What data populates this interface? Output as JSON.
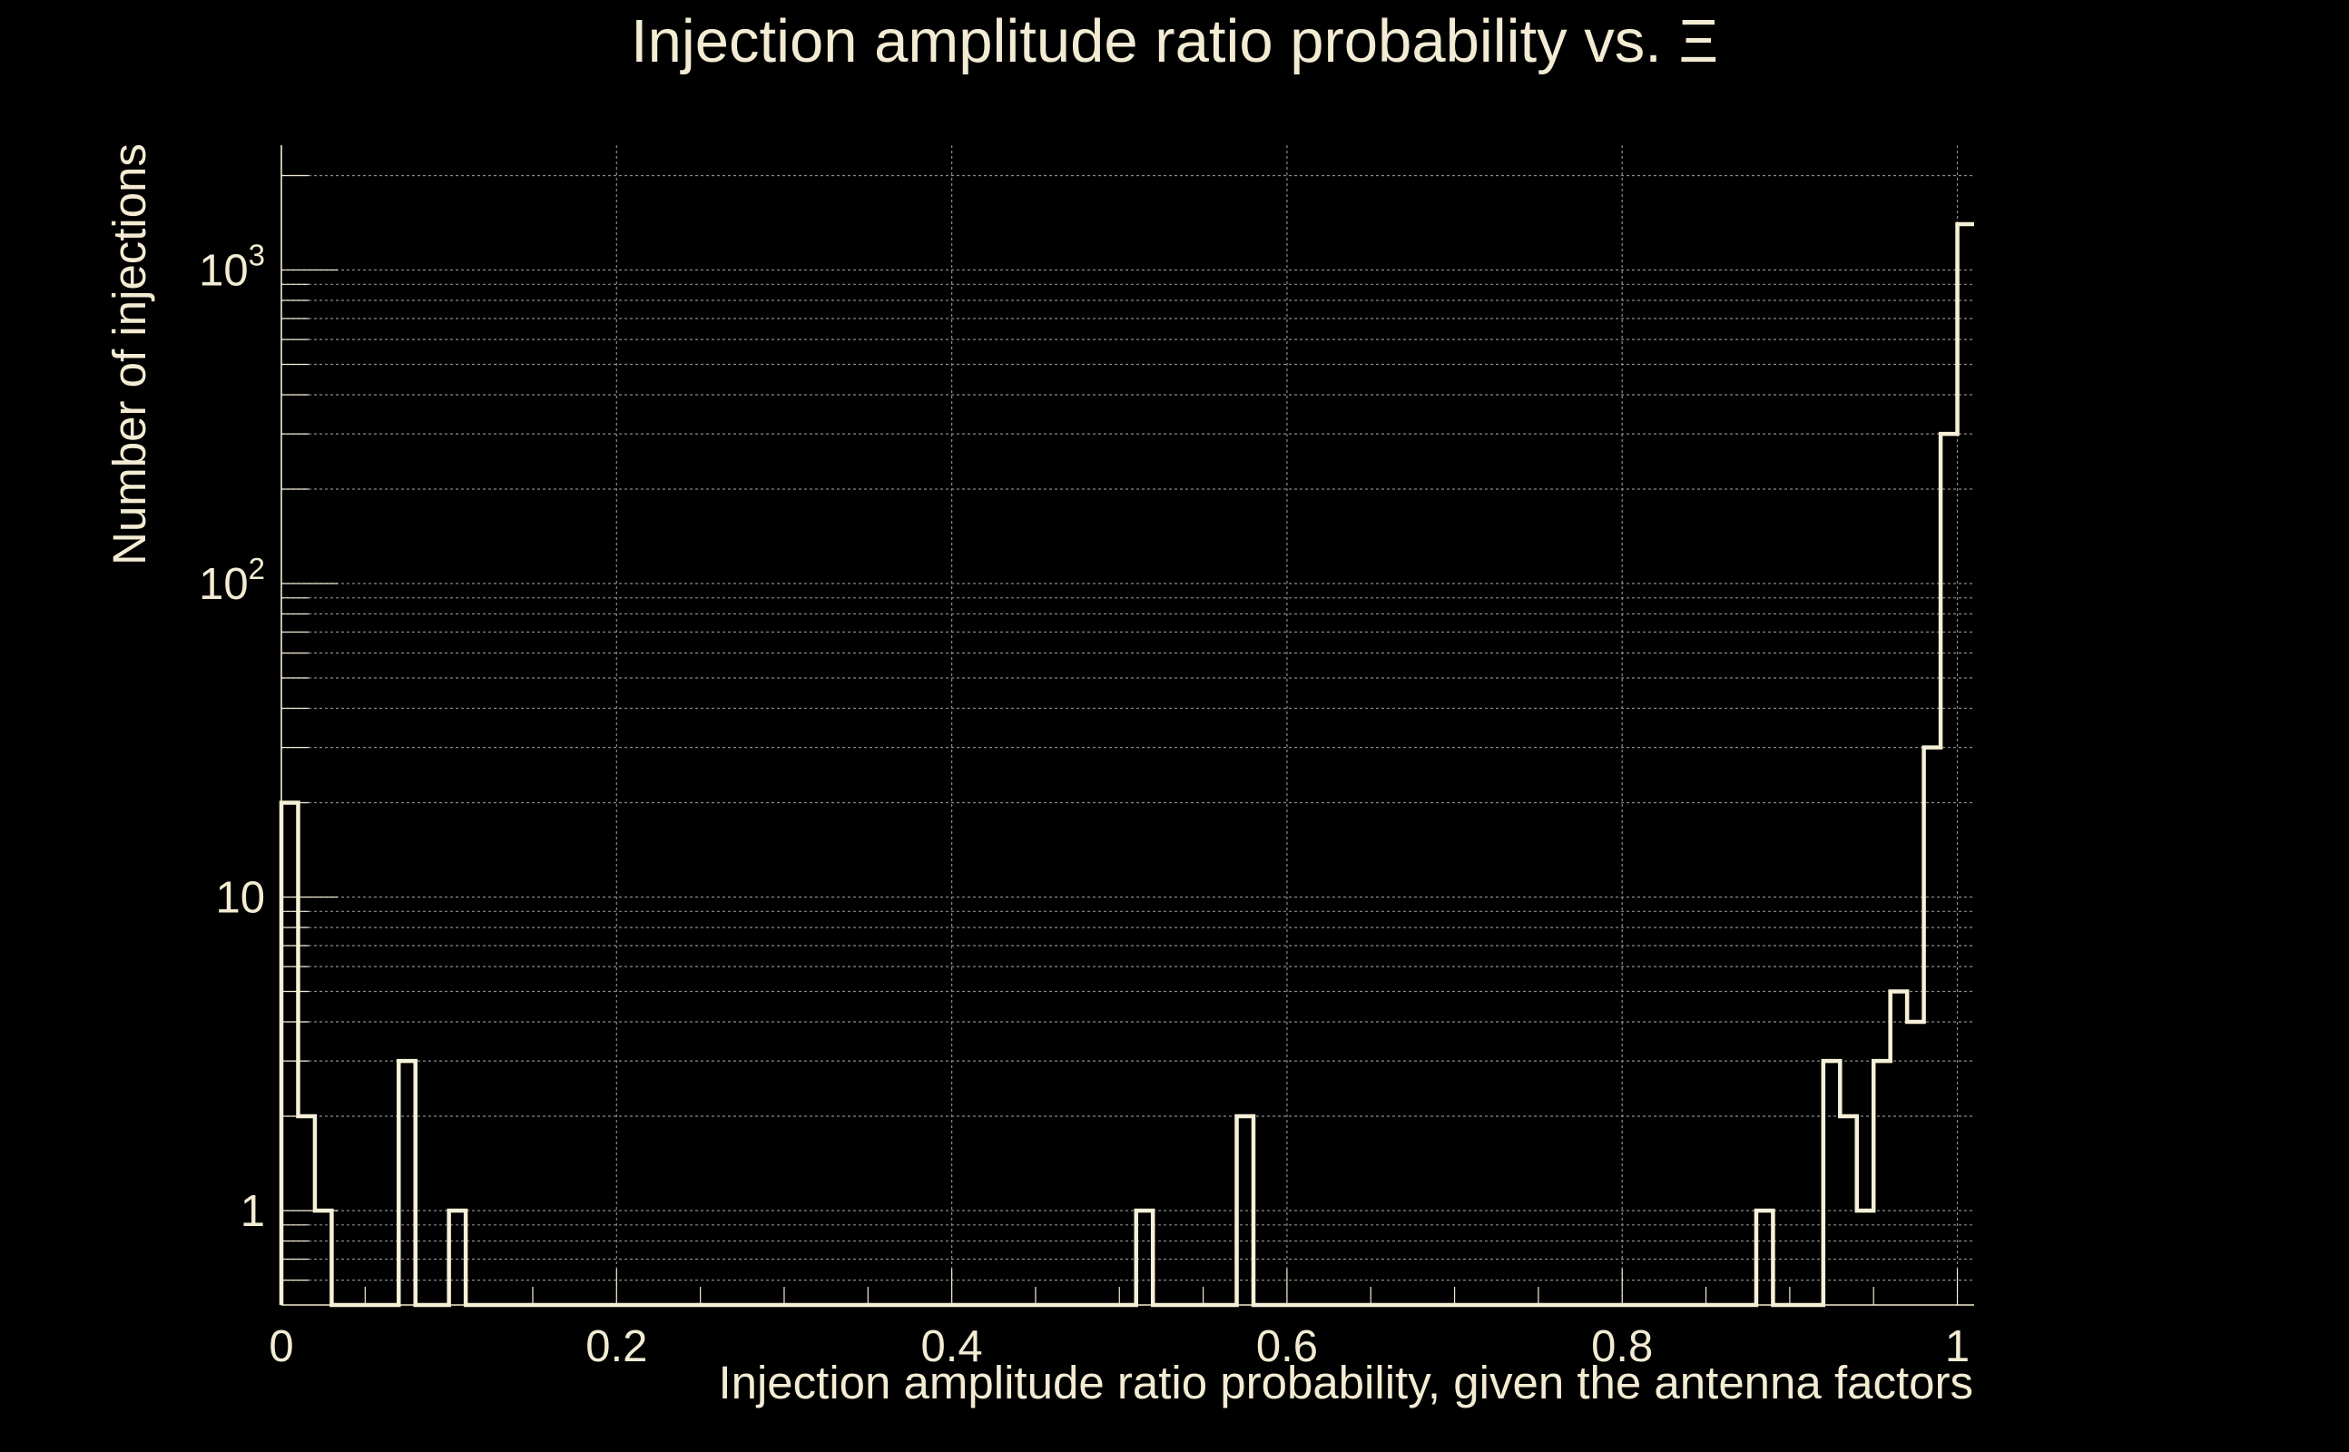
{
  "chart_data": {
    "type": "bar",
    "title": "Injection amplitude ratio probability vs.  Ξ",
    "xlabel": "Injection amplitude ratio probability, given the antenna factors",
    "ylabel": "Number of injections",
    "x_ticks": [
      {
        "value": 0,
        "label": "0"
      },
      {
        "value": 0.2,
        "label": "0.2"
      },
      {
        "value": 0.4,
        "label": "0.4"
      },
      {
        "value": 0.6,
        "label": "0.6"
      },
      {
        "value": 0.8,
        "label": "0.8"
      },
      {
        "value": 1,
        "label": "1"
      }
    ],
    "y_ticks": [
      {
        "value": 1,
        "label": "1"
      },
      {
        "value": 10,
        "label": "10"
      },
      {
        "value": 100,
        "base": "10",
        "exp": "2"
      },
      {
        "value": 1000,
        "base": "10",
        "exp": "3"
      }
    ],
    "xlim": [
      0,
      1.01
    ],
    "ylim": [
      0.5,
      2500
    ],
    "y_scale": "log",
    "grid": true,
    "bin_width": 0.01,
    "bins": [
      {
        "x": 0.0,
        "count": 20
      },
      {
        "x": 0.01,
        "count": 2
      },
      {
        "x": 0.02,
        "count": 1
      },
      {
        "x": 0.07,
        "count": 3
      },
      {
        "x": 0.1,
        "count": 1
      },
      {
        "x": 0.51,
        "count": 1
      },
      {
        "x": 0.57,
        "count": 2
      },
      {
        "x": 0.88,
        "count": 1
      },
      {
        "x": 0.92,
        "count": 3
      },
      {
        "x": 0.93,
        "count": 2
      },
      {
        "x": 0.94,
        "count": 1
      },
      {
        "x": 0.95,
        "count": 3
      },
      {
        "x": 0.96,
        "count": 5
      },
      {
        "x": 0.97,
        "count": 4
      },
      {
        "x": 0.98,
        "count": 30
      },
      {
        "x": 0.99,
        "count": 300
      },
      {
        "x": 1.0,
        "count": 1400
      }
    ],
    "colors": {
      "background": "#000000",
      "text": "#f3ebd3",
      "line": "#f7f0d8",
      "grid": "#8a8a8a"
    }
  }
}
